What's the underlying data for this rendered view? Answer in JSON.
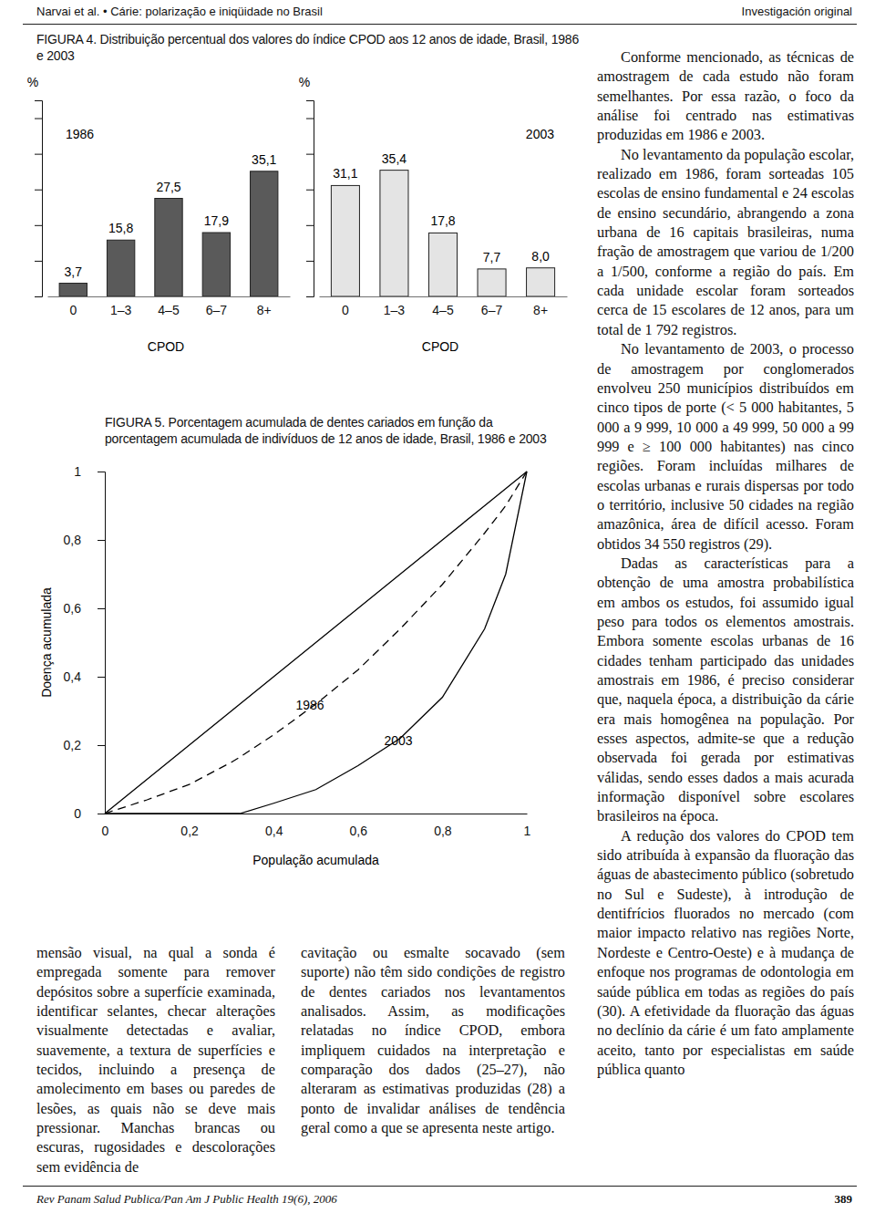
{
  "header": {
    "left": "Narvai et al. • Cárie: polarização e iniqüidade no Brasil",
    "right": "Investigación original"
  },
  "figures": [
    {
      "caption": "FIGURA 4. Distribuição percentual dos valores do índice CPOD aos 12 anos de idade, Brasil, 1986 e 2003"
    },
    {
      "caption": "FIGURA 5. Porcentagem acumulada de dentes cariados em função da porcentagem acumulada de indivíduos de 12 anos de idade, Brasil, 1986 e 2003"
    }
  ],
  "chart_data": [
    {
      "type": "bar",
      "title": "1986",
      "x_label": "CPOD",
      "y_label": "%",
      "categories": [
        "0",
        "1–3",
        "4–5",
        "6–7",
        "8+"
      ],
      "values": [
        3.7,
        15.8,
        27.5,
        17.9,
        35.1
      ],
      "value_labels": [
        "3,7",
        "15,8",
        "27,5",
        "17,9",
        "35,1"
      ],
      "color": "#5a5a5a",
      "ylim": [
        0,
        55
      ],
      "yticks": [
        0,
        10,
        20,
        30,
        40,
        50
      ],
      "tick_labels": "x",
      "data_labels": true
    },
    {
      "type": "bar",
      "title": "2003",
      "x_label": "CPOD",
      "y_label": "%",
      "categories": [
        "0",
        "1–3",
        "4–5",
        "6–7",
        "8+"
      ],
      "values": [
        31.1,
        35.4,
        17.8,
        7.7,
        8.0
      ],
      "value_labels": [
        "31,1",
        "35,4",
        "17,8",
        "7,7",
        "8,0"
      ],
      "color": "#e4e4e4",
      "ylim": [
        0,
        55
      ],
      "yticks": [
        0,
        10,
        20,
        30,
        40,
        50
      ],
      "tick_labels": "x",
      "data_labels": true
    },
    {
      "type": "line",
      "x_label": "População acumulada",
      "y_label": "Doença acumulada",
      "x": [
        0,
        0.1,
        0.2,
        0.3,
        0.32,
        0.4,
        0.5,
        0.6,
        0.7,
        0.8,
        0.9,
        0.95,
        1
      ],
      "series": [
        {
          "values": [
            0,
            0.1,
            0.2,
            0.3,
            0.32,
            0.4,
            0.5,
            0.6,
            0.7,
            0.8,
            0.9,
            0.95,
            1
          ],
          "line_style": "solid",
          "color": "#000000"
        },
        {
          "name": "1986",
          "values": [
            0,
            0.04,
            0.085,
            0.15,
            0.165,
            0.23,
            0.32,
            0.42,
            0.54,
            0.67,
            0.82,
            0.9,
            1
          ],
          "line_style": "dashed",
          "color": "#000000"
        },
        {
          "name": "2003",
          "values": [
            0,
            0,
            0,
            0,
            0,
            0.03,
            0.07,
            0.14,
            0.22,
            0.34,
            0.54,
            0.7,
            1
          ],
          "line_style": "solid",
          "color": "#000000"
        }
      ],
      "xlim": [
        0,
        1
      ],
      "ylim": [
        0,
        1
      ],
      "xticks": [
        0,
        {
          "value": 0.2,
          "label": "0,2"
        },
        {
          "value": 0.4,
          "label": "0,4"
        },
        {
          "value": 0.6,
          "label": "0,6"
        },
        {
          "value": 0.8,
          "label": "0,8"
        },
        1
      ],
      "yticks": [
        0,
        {
          "value": 0.2,
          "label": "0,2"
        },
        {
          "value": 0.4,
          "label": "0,4"
        },
        {
          "value": 0.6,
          "label": "0,6"
        },
        {
          "value": 0.8,
          "label": "0,8"
        },
        1
      ]
    }
  ],
  "columns": {
    "left": [
      "mensão visual, na qual a sonda é empregada somente para remover depósitos sobre a superfície examinada, identificar selantes, checar alterações visualmente detectadas e avaliar, suavemente, a textura de superfícies e tecidos, incluindo a presença de amolecimento em bases ou paredes de lesões, as quais não se deve mais pressionar. Manchas brancas ou escuras, rugosidades e descolorações sem evidência de"
    ],
    "middle": [
      "cavitação ou esmalte socavado (sem suporte) não têm sido condições de registro de dentes cariados nos levantamentos analisados. Assim, as modificações relatadas no índice CPOD, embora impliquem cuidados na interpretação e comparação dos dados (25–27), não alteraram as estimativas produzidas (28) a ponto de invalidar análises de tendência geral como a que se apresenta neste artigo."
    ],
    "right": [
      "Conforme mencionado, as técnicas de amostragem de cada estudo não foram semelhantes. Por essa razão, o foco da análise foi centrado nas estimativas produzidas em 1986 e 2003.",
      "No levantamento da população escolar, realizado em 1986, foram sorteadas 105 escolas de ensino fundamental e 24 escolas de ensino secundário, abrangendo a zona urbana de 16 capitais brasileiras, numa fração de amostragem que variou de 1/200 a 1/500, conforme a região do país. Em cada unidade escolar foram sorteados cerca de 15 escolares de 12 anos, para um total de 1 792 registros.",
      "No levantamento de 2003, o processo de amostragem por conglomerados envolveu 250 municípios distribuídos em cinco tipos de porte (< 5 000 habitantes, 5 000 a 9 999, 10 000 a 49 999, 50 000 a 99 999 e ≥ 100 000 habitantes) nas cinco regiões. Foram incluídas milhares de escolas urbanas e rurais dispersas por todo o território, inclusive 50 cidades na região amazônica, área de difícil acesso. Foram obtidos 34 550 registros (29).",
      "Dadas as características para a obtenção de uma amostra probabilística em ambos os estudos, foi assumido igual peso para todos os elementos amostrais. Embora somente escolas urbanas de 16 cidades tenham participado das unidades amostrais em 1986, é preciso considerar que, naquela época, a distribuição da cárie era mais homogênea na população. Por esses aspectos, admite-se que a redução observada foi gerada por estimativas válidas, sendo esses dados a mais acurada informação disponível sobre escolares brasileiros na época.",
      "A redução dos valores do CPOD tem sido atribuída à expansão da fluoração das águas de abastecimento público (sobretudo no Sul e Sudeste), à introdução de dentifrícios fluorados no mercado (com maior impacto relativo nas regiões Norte, Nordeste e Centro-Oeste) e à mudança de enfoque nos programas de odontologia em saúde pública em todas as regiões do país (30). A efetividade da fluoração das águas no declínio da cárie é um fato amplamente aceito, tanto por especialistas em saúde pública quanto"
    ]
  },
  "footer": {
    "left": "Rev Panam Salud Publica/Pan Am J Public Health 19(6), 2006",
    "right": "389"
  }
}
